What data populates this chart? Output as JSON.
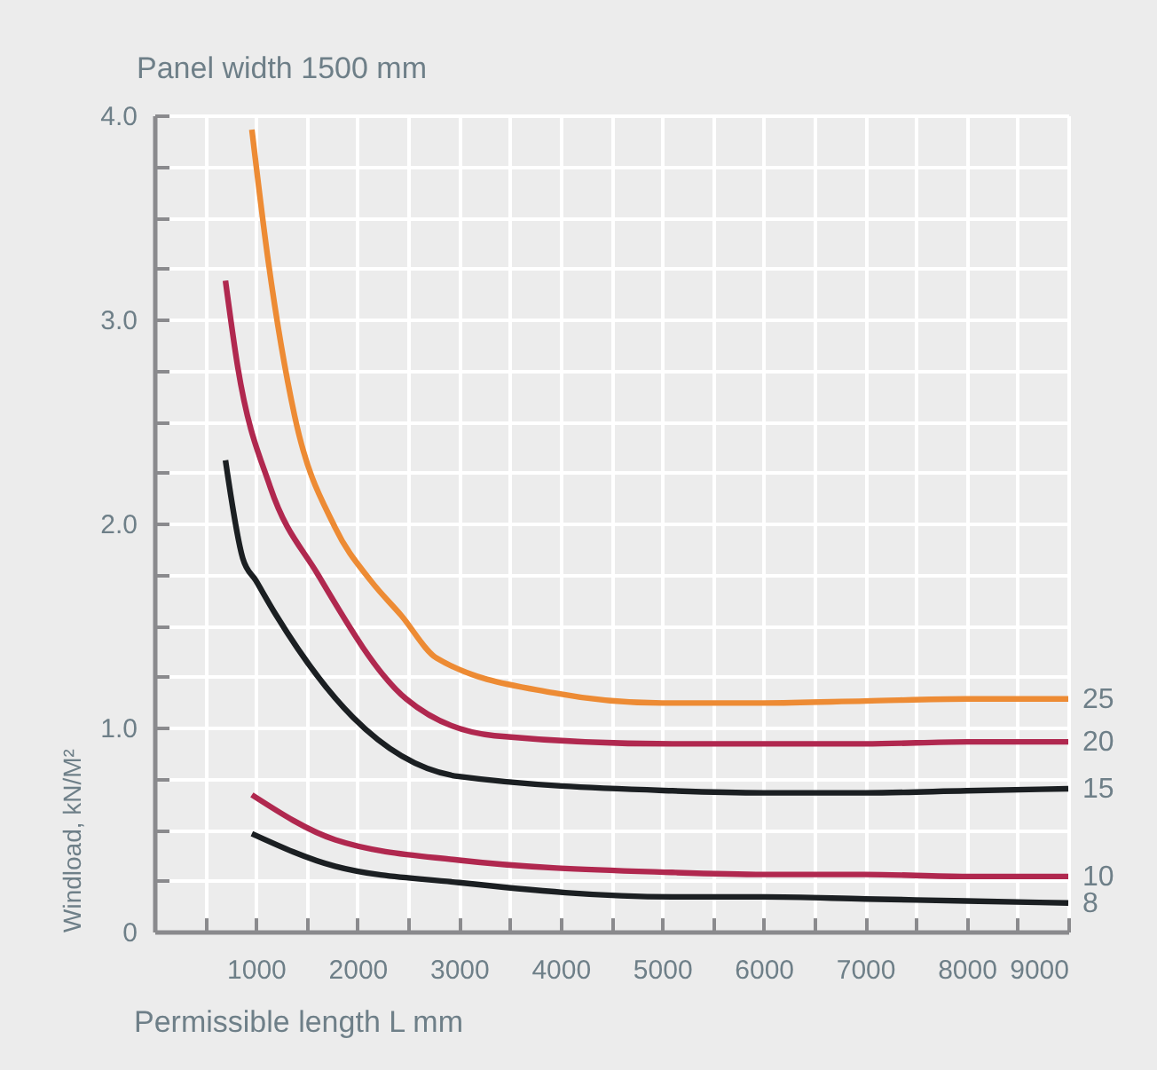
{
  "chart_data": {
    "type": "line",
    "title": "Panel width 1500 mm",
    "xlabel": "Permissible length L mm",
    "ylabel": "Windload, kN/M²",
    "xlim": [
      0,
      9000
    ],
    "ylim": [
      0,
      4
    ],
    "xticks": [
      {
        "value": 500,
        "label": null
      },
      1000,
      {
        "value": 1500,
        "label": null
      },
      2000,
      {
        "value": 2500,
        "label": null
      },
      3000,
      {
        "value": 3500,
        "label": null
      },
      4000,
      {
        "value": 4500,
        "label": null
      },
      5000,
      {
        "value": 5500,
        "label": null
      },
      6000,
      {
        "value": 6500,
        "label": null
      },
      7000,
      {
        "value": 7500,
        "label": null
      },
      8000,
      {
        "value": 8500,
        "label": null
      },
      9000
    ],
    "yticks": [
      0,
      {
        "value": 0.25,
        "label": null
      },
      {
        "value": 0.5,
        "label": null
      },
      {
        "value": 0.75,
        "label": null
      },
      {
        "value": 1,
        "label": "1.0"
      },
      {
        "value": 1.25,
        "label": null
      },
      {
        "value": 1.5,
        "label": null
      },
      {
        "value": 1.75,
        "label": null
      },
      {
        "value": 2,
        "label": "2.0"
      },
      {
        "value": 2.25,
        "label": null
      },
      {
        "value": 2.5,
        "label": null
      },
      {
        "value": 2.75,
        "label": null
      },
      {
        "value": 3,
        "label": "3.0"
      },
      {
        "value": 3.25,
        "label": null
      },
      {
        "value": 3.5,
        "label": null
      },
      {
        "value": 3.75,
        "label": null
      },
      {
        "value": 4,
        "label": "4.0"
      }
    ],
    "grid": true,
    "legend": false,
    "line_style": "solid",
    "marker": "none",
    "series": [
      {
        "name": "25",
        "color": "#ed8b34",
        "x": [
          960,
          1120,
          1380,
          1780,
          2130,
          2430,
          2780,
          3930,
          5000,
          6000,
          7000,
          8000,
          9000
        ],
        "values": [
          3.93,
          3.29,
          2.53,
          1.98,
          1.72,
          1.55,
          1.34,
          1.17,
          1.12,
          1.12,
          1.13,
          1.14,
          1.14
        ]
      },
      {
        "name": "20",
        "color": "#b0284f",
        "x": [
          700,
          820,
          1140,
          1610,
          2480,
          3350,
          5100,
          6000,
          7000,
          8000,
          9000
        ],
        "values": [
          3.19,
          2.77,
          2.18,
          1.75,
          1.14,
          0.96,
          0.92,
          0.92,
          0.92,
          0.93,
          0.93
        ]
      },
      {
        "name": "15",
        "color": "#1b1f22",
        "x": [
          700,
          870,
          1000,
          1200,
          1956,
          3000,
          5100,
          6000,
          7000,
          8000,
          9000
        ],
        "values": [
          2.31,
          1.83,
          1.72,
          1.55,
          1.05,
          0.76,
          0.69,
          0.68,
          0.68,
          0.69,
          0.7
        ]
      },
      {
        "name": "10",
        "color": "#b0284f",
        "x": [
          960,
          1780,
          3000,
          5100,
          6000,
          7000,
          8000,
          9000
        ],
        "values": [
          0.67,
          0.45,
          0.35,
          0.29,
          0.28,
          0.28,
          0.27,
          0.27
        ]
      },
      {
        "name": "8",
        "color": "#1b1f22",
        "x": [
          960,
          1780,
          3000,
          5100,
          6000,
          7000,
          8000,
          9000
        ],
        "values": [
          0.48,
          0.32,
          0.24,
          0.17,
          0.17,
          0.16,
          0.15,
          0.14
        ]
      }
    ]
  }
}
